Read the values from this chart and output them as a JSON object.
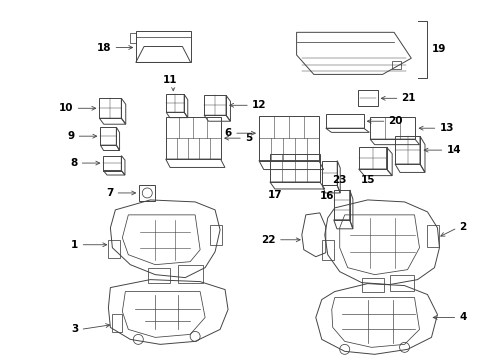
{
  "bg_color": "#ffffff",
  "line_color": "#444444",
  "text_color": "#000000",
  "fig_width": 4.9,
  "fig_height": 3.6,
  "dpi": 100,
  "lw": 0.7
}
